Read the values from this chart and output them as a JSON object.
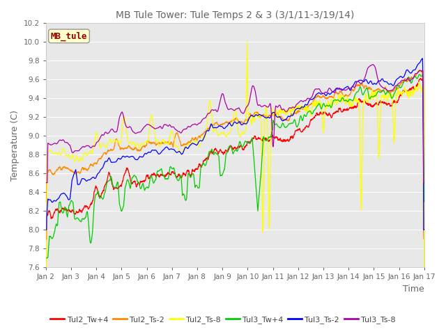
{
  "title": "MB Tule Tower: Tule Temps 2 & 3 (3/1/11-3/19/14)",
  "xlabel": "Time",
  "ylabel": "Temperature (C)",
  "ylim": [
    7.6,
    10.2
  ],
  "xlim": [
    2,
    17
  ],
  "xticks": [
    2,
    3,
    4,
    5,
    6,
    7,
    8,
    9,
    10,
    11,
    12,
    13,
    14,
    15,
    16,
    17
  ],
  "xtick_labels": [
    "Jan 2",
    "Jan 3",
    "Jan 4",
    "Jan 5",
    "Jan 6",
    "Jan 7",
    "Jan 8",
    "Jan 9",
    "Jan 10",
    "Jan 11",
    "Jan 12",
    "Jan 13",
    "Jan 14",
    "Jan 15",
    "Jan 16",
    "Jan 17"
  ],
  "yticks": [
    7.6,
    7.8,
    8.0,
    8.2,
    8.4,
    8.6,
    8.8,
    9.0,
    9.2,
    9.4,
    9.6,
    9.8,
    10.0,
    10.2
  ],
  "series_colors": {
    "Tul2_Tw+4": "#ff0000",
    "Tul2_Ts-2": "#ff8800",
    "Tul2_Ts-8": "#ffff00",
    "Tul3_Tw+4": "#00cc00",
    "Tul3_Ts-2": "#0000ff",
    "Tul3_Ts-8": "#aa00aa"
  },
  "legend_label": "MB_tule",
  "fig_facecolor": "#ffffff",
  "ax_facecolor": "#e8e8e8",
  "grid_color": "#ffffff",
  "title_color": "#666666",
  "axis_label_color": "#666666",
  "tick_color": "#666666"
}
